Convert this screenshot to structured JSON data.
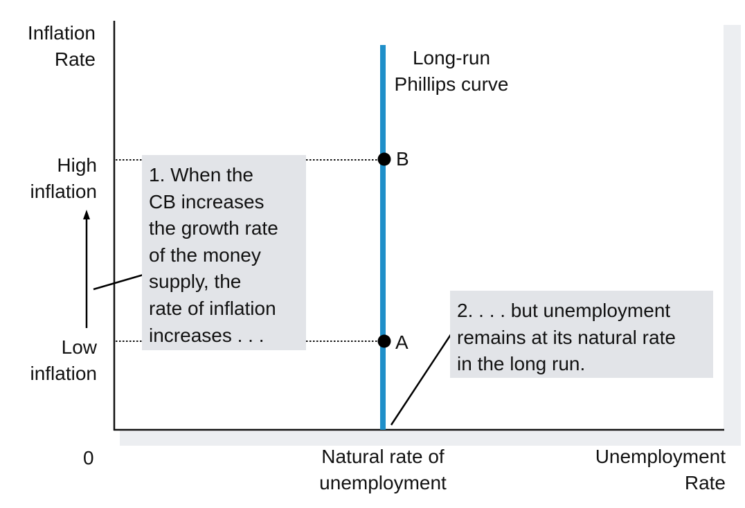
{
  "axes": {
    "y_label_lines": [
      "Inflation",
      "Rate"
    ],
    "x_label_lines": [
      "Unemployment",
      "Rate"
    ],
    "origin_label": "0",
    "x_tick_lines": [
      "Natural rate of",
      "unemployment"
    ],
    "y_high_lines": [
      "High",
      "inflation"
    ],
    "y_low_lines": [
      "Low",
      "inflation"
    ]
  },
  "curve": {
    "label_lines": [
      "Long-run",
      "Phillips curve"
    ],
    "color": "#1f8fc9"
  },
  "points": {
    "a": "A",
    "b": "B"
  },
  "annotations": {
    "left_box_lines": [
      "1. When the",
      "CB increases",
      "the growth rate",
      "of the money",
      "supply, the",
      "rate of inflation",
      "increases . . ."
    ],
    "right_box_lines": [
      "2. . . . but unemployment",
      "remains at its natural rate",
      "in the long run."
    ],
    "box_color": "#e2e4e8"
  }
}
